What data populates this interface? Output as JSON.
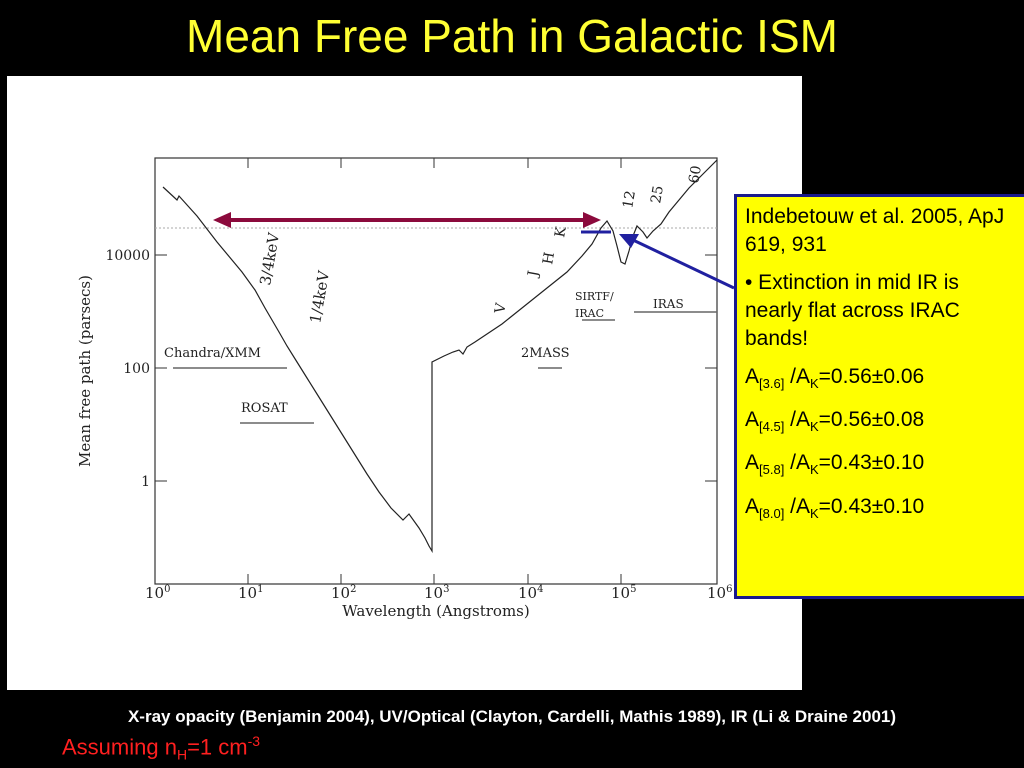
{
  "slide": {
    "title": "Mean Free Path in Galactic ISM",
    "footnote": "X-ray opacity (Benjamin 2004), UV/Optical (Clayton, Cardelli, Mathis 1989), IR (Li & Draine 2001)",
    "assumption": {
      "prefix": "Assuming n",
      "sub": "H",
      "mid": "=1 cm",
      "sup": "-3"
    }
  },
  "plot": {
    "xlabel": "Wavelength (Angstroms)",
    "ylabel": "Mean free path (parsecs)",
    "x_ticks": [
      {
        "base": "10",
        "exp": "0"
      },
      {
        "base": "10",
        "exp": "1"
      },
      {
        "base": "10",
        "exp": "2"
      },
      {
        "base": "10",
        "exp": "3"
      },
      {
        "base": "10",
        "exp": "4"
      },
      {
        "base": "10",
        "exp": "5"
      },
      {
        "base": "10",
        "exp": "6"
      }
    ],
    "y_ticks": [
      "10000",
      "100",
      "1"
    ],
    "band_labels": {
      "soft_xray": "3/4keV",
      "hard_xray": "1/4keV",
      "V": "V",
      "J": "J",
      "H": "H",
      "K": "K",
      "b12": "12",
      "b25": "25",
      "b60": "60"
    },
    "missions": {
      "chandra": "Chandra/XMM",
      "rosat": "ROSAT",
      "twomass": "2MASS",
      "sirtf_line1": "SIRTF/",
      "sirtf_line2": "IRAC",
      "iras": "IRAS"
    },
    "colors": {
      "arrow_maroon": "#8b0a3c",
      "pointer_blue": "#2020a0",
      "curve": "#222222"
    }
  },
  "info": {
    "citation": "Indebetouw et al. 2005, ApJ 619, 931",
    "bullet": "• Extinction in mid IR is nearly flat across IRAC bands!",
    "ratios": [
      {
        "a": "A",
        "band": "[3.6]",
        "sep": " /A",
        "k": "K",
        "value": "=0.56±0.06"
      },
      {
        "a": "A",
        "band": "[4.5]",
        "sep": " /A",
        "k": "K",
        "value": "=0.56±0.08"
      },
      {
        "a": "A",
        "band": "[5.8]",
        "sep": " /A",
        "k": "K",
        "value": "=0.43±0.10"
      },
      {
        "a": "A",
        "band": "[8.0]",
        "sep": " /A",
        "k": "K",
        "value": "=0.43±0.10"
      }
    ]
  }
}
